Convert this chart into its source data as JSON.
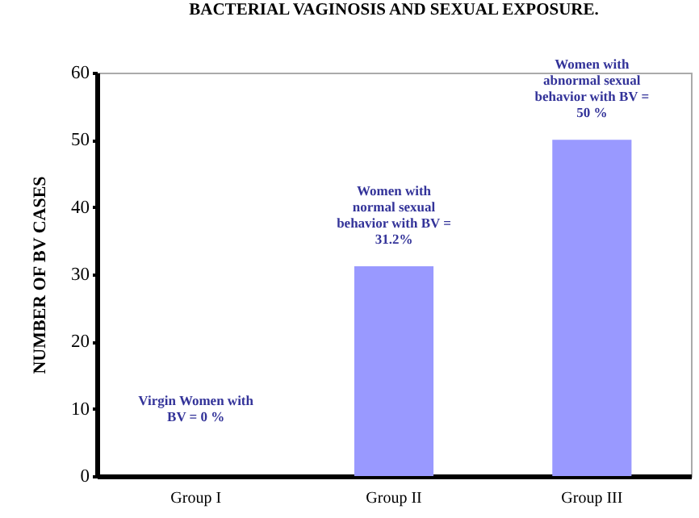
{
  "chart_data": {
    "type": "bar",
    "title": "BACTERIAL VAGINOSIS AND SEXUAL EXPOSURE.",
    "ylabel": "NUMBER OF  BV  CASES",
    "categories": [
      "Group I",
      "Group II",
      "Group III"
    ],
    "values": [
      0,
      31.2,
      50
    ],
    "color": "#9999ff",
    "ylim": [
      0,
      60
    ],
    "yticks": [
      0,
      10,
      20,
      30,
      40,
      50,
      60
    ],
    "grid": false,
    "annotations": [
      "Virgin Women with\nBV = 0 %",
      "Women with\nnormal sexual\nbehavior with BV =\n31.2%",
      "Women with\nabnormal sexual\nbehavior with BV =\n50 %"
    ]
  }
}
